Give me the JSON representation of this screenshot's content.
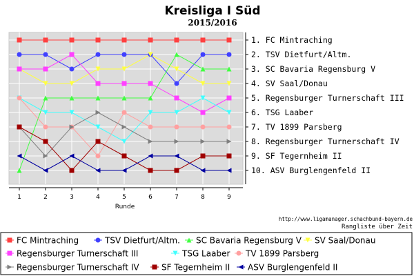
{
  "chart_data": {
    "type": "line",
    "title": "Kreisliga I Süd",
    "subtitle": "2015/2016",
    "xlabel": "Runde",
    "ylabel": "",
    "x": [
      1,
      2,
      3,
      4,
      5,
      6,
      7,
      8,
      9
    ],
    "ylim": [
      0.5,
      11
    ],
    "grid": true,
    "rank_labels": [
      "1. FC Mintraching",
      "2. TSV Dietfurt/Altm.",
      "3. SC Bavaria Regensburg V",
      "4. SV Saal/Donau",
      "5. Regensburger Turnerschaft III",
      "6. TSG Laaber",
      "7. TV 1899 Parsberg",
      "8. Regensburger Turnerschaft IV",
      "9. SF Tegernheim II",
      "10. ASV Burglengenfeld II"
    ],
    "series": [
      {
        "name": "FC Mintraching",
        "color": "#ff4040",
        "marker": "square",
        "values": [
          1,
          1,
          1,
          1,
          1,
          1,
          1,
          1,
          1
        ]
      },
      {
        "name": "TSV Dietfurt/Altm.",
        "color": "#4040ff",
        "marker": "circle",
        "values": [
          2,
          2,
          3,
          2,
          2,
          2,
          4,
          2,
          2
        ]
      },
      {
        "name": "SC Bavaria Regensburg V",
        "color": "#40ff40",
        "marker": "triangle-up",
        "values": [
          10,
          5,
          5,
          5,
          5,
          5,
          2,
          3,
          3
        ]
      },
      {
        "name": "SV Saal/Donau",
        "color": "#ffff40",
        "marker": "triangle-down",
        "values": [
          3,
          4,
          4,
          3,
          3,
          2,
          3,
          4,
          4
        ]
      },
      {
        "name": "Regensburger Turnerschaft III",
        "color": "#ff40ff",
        "marker": "square",
        "values": [
          3,
          3,
          2,
          4,
          4,
          4,
          5,
          6,
          5
        ]
      },
      {
        "name": "TSG Laaber",
        "color": "#40ffff",
        "marker": "triangle-down",
        "values": [
          5,
          6,
          6,
          7,
          8,
          6,
          6,
          5,
          6
        ]
      },
      {
        "name": "TV 1899 Parsberg",
        "color": "#ffa0a0",
        "marker": "circle",
        "values": [
          5,
          7,
          7,
          9,
          6,
          7,
          7,
          7,
          7
        ]
      },
      {
        "name": "Regensburger Turnerschaft IV",
        "color": "#808080",
        "marker": "triangle-right",
        "values": [
          7,
          9,
          7,
          6,
          7,
          8,
          8,
          8,
          8
        ]
      },
      {
        "name": "SF Tegernheim II",
        "color": "#a00000",
        "marker": "square",
        "values": [
          7,
          8,
          10,
          8,
          9,
          10,
          10,
          9,
          9
        ]
      },
      {
        "name": "ASV Burglengenfeld II",
        "color": "#0000a0",
        "marker": "triangle-left",
        "values": [
          9,
          10,
          9,
          10,
          10,
          9,
          9,
          10,
          10
        ]
      }
    ]
  },
  "footer": {
    "url": "http://www.ligamanager.schachbund-bayern.de",
    "note": "Rangliste über Zeit"
  }
}
